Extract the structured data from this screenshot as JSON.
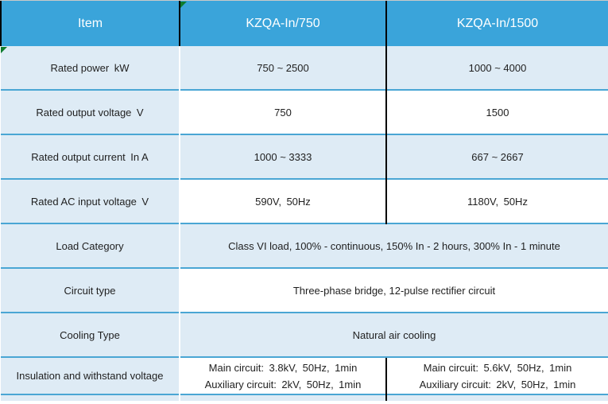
{
  "table": {
    "header": {
      "item": "Item",
      "col750": "KZQA-In/750",
      "col1500": "KZQA-In/1500"
    },
    "rows": {
      "rated_power": {
        "item": "Rated power kW",
        "v1": "750 ~ 2500",
        "v2": "1000 ~ 4000"
      },
      "rated_output_voltage": {
        "item": "Rated output voltage V",
        "v1": "750",
        "v2": "1500"
      },
      "rated_output_current": {
        "item": "Rated output current In A",
        "v1": "1000 ~ 3333",
        "v2": "667 ~ 2667"
      },
      "rated_ac_input_voltage": {
        "item": "Rated AC input voltage V",
        "v1": "590V, 50Hz",
        "v2": "1180V, 50Hz"
      },
      "load_category": {
        "item": "Load Category",
        "merged": "Class VI load, 100% - continuous, 150% In - 2 hours, 300% In - 1 minute"
      },
      "circuit_type": {
        "item": "Circuit type",
        "merged": "Three-phase bridge, 12-pulse rectifier circuit"
      },
      "cooling_type": {
        "item": "Cooling Type",
        "merged": "Natural air cooling"
      },
      "insulation": {
        "item": "Insulation and withstand voltage",
        "v1_line1": "Main circuit: 3.8kV, 50Hz, 1min",
        "v1_line2": "Auxiliary circuit: 2kV, 50Hz, 1min",
        "v2_line1": "Main circuit: 5.6kV, 50Hz, 1min",
        "v2_line2": "Auxiliary circuit: 2kV, 50Hz, 1min"
      }
    },
    "icons": {
      "header_cell_flag": "green-corner-flag-icon",
      "row1_cell_flag": "green-corner-flag-icon"
    },
    "colors": {
      "header_blue": "#3aa4da",
      "row_light_blue": "#deebf5",
      "row_border_blue": "#4aa6d4",
      "grid_black": "#000000",
      "header_text": "#ffffff",
      "body_text": "#1f1f1f",
      "flag_green": "#0e7c2f",
      "white": "#ffffff"
    }
  }
}
